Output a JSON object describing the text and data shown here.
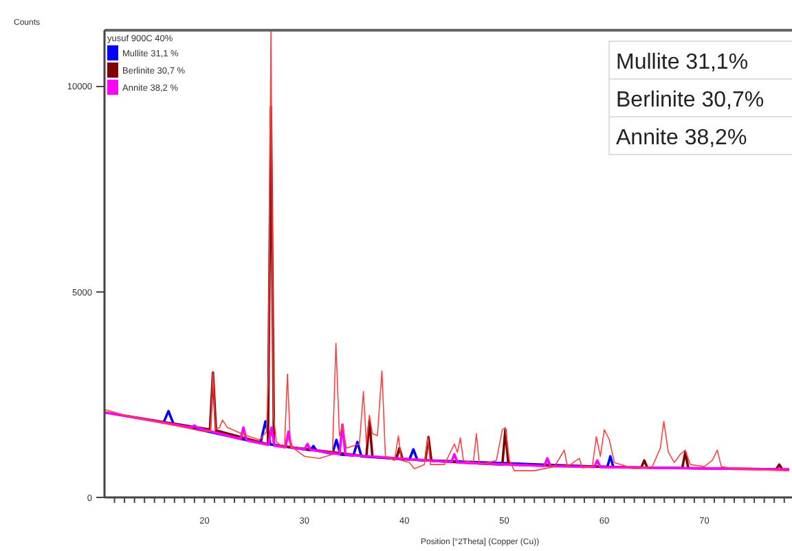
{
  "chart_data": {
    "type": "line",
    "ylabel": "Counts",
    "xlabel": "Position [°2Theta] (Copper (Cu))",
    "legend_title": "yusuf 900C 40%",
    "legend": "top left",
    "grid": false,
    "marker": "none",
    "line_style": "solid",
    "xlim": [
      10,
      78.5
    ],
    "ylim": [
      0,
      11370
    ],
    "xticks": [
      {
        "value": 11,
        "label": null
      },
      {
        "value": 12,
        "label": null
      },
      {
        "value": 13,
        "label": null
      },
      {
        "value": 14,
        "label": null
      },
      {
        "value": 15,
        "label": null
      },
      {
        "value": 16,
        "label": null
      },
      {
        "value": 17,
        "label": null
      },
      {
        "value": 18,
        "label": null
      },
      {
        "value": 19,
        "label": null
      },
      20,
      {
        "value": 21,
        "label": null
      },
      {
        "value": 22,
        "label": null
      },
      {
        "value": 23,
        "label": null
      },
      {
        "value": 24,
        "label": null
      },
      {
        "value": 25,
        "label": null
      },
      {
        "value": 26,
        "label": null
      },
      {
        "value": 27,
        "label": null
      },
      {
        "value": 28,
        "label": null
      },
      {
        "value": 29,
        "label": null
      },
      30,
      {
        "value": 31,
        "label": null
      },
      {
        "value": 32,
        "label": null
      },
      {
        "value": 33,
        "label": null
      },
      {
        "value": 34,
        "label": null
      },
      {
        "value": 35,
        "label": null
      },
      {
        "value": 36,
        "label": null
      },
      {
        "value": 37,
        "label": null
      },
      {
        "value": 38,
        "label": null
      },
      {
        "value": 39,
        "label": null
      },
      40,
      {
        "value": 41,
        "label": null
      },
      {
        "value": 42,
        "label": null
      },
      {
        "value": 43,
        "label": null
      },
      {
        "value": 44,
        "label": null
      },
      {
        "value": 45,
        "label": null
      },
      {
        "value": 46,
        "label": null
      },
      {
        "value": 47,
        "label": null
      },
      {
        "value": 48,
        "label": null
      },
      {
        "value": 49,
        "label": null
      },
      50,
      {
        "value": 51,
        "label": null
      },
      {
        "value": 52,
        "label": null
      },
      {
        "value": 53,
        "label": null
      },
      {
        "value": 54,
        "label": null
      },
      {
        "value": 55,
        "label": null
      },
      {
        "value": 56,
        "label": null
      },
      {
        "value": 57,
        "label": null
      },
      {
        "value": 58,
        "label": null
      },
      {
        "value": 59,
        "label": null
      },
      60,
      {
        "value": 61,
        "label": null
      },
      {
        "value": 62,
        "label": null
      },
      {
        "value": 63,
        "label": null
      },
      {
        "value": 64,
        "label": null
      },
      {
        "value": 65,
        "label": null
      },
      {
        "value": 66,
        "label": null
      },
      {
        "value": 67,
        "label": null
      },
      {
        "value": 68,
        "label": null
      },
      {
        "value": 69,
        "label": null
      },
      70,
      {
        "value": 71,
        "label": null
      },
      {
        "value": 72,
        "label": null
      },
      {
        "value": 73,
        "label": null
      },
      {
        "value": 74,
        "label": null
      },
      {
        "value": 75,
        "label": null
      },
      {
        "value": 76,
        "label": null
      },
      {
        "value": 77,
        "label": null
      },
      {
        "value": 78,
        "label": null
      }
    ],
    "yticks": [
      0,
      5000,
      10000
    ],
    "annotations": [
      "Mullite 31,1%",
      "Berlinite 30,7%",
      "Annite 38,2%"
    ],
    "series": [
      {
        "name": "Mullite 31,1 %",
        "color": "#0000ff",
        "x": [
          15.9,
          16.4,
          16.9,
          25.6,
          26.1,
          26.6,
          30.6,
          30.9,
          31.2,
          32.8,
          33.2,
          33.6,
          34.9,
          35.3,
          35.7,
          40.5,
          40.9,
          41.3,
          60.3,
          60.6,
          60.9
        ],
        "values": [
          1820,
          2100,
          1790,
          1320,
          1850,
          1290,
          1150,
          1250,
          1140,
          1060,
          1400,
          1040,
          1020,
          1350,
          1000,
          920,
          1170,
          910,
          740,
          1000,
          740
        ]
      },
      {
        "name": "Berlinite 30,7 %",
        "color": "#800000",
        "x": [
          10,
          20.55,
          20.85,
          21.15,
          26.35,
          26.65,
          26.95,
          36.2,
          36.5,
          36.8,
          39.2,
          39.5,
          39.8,
          42.1,
          42.4,
          42.7,
          49.8,
          50.1,
          50.4,
          63.7,
          64,
          64.3,
          67.8,
          68.1,
          68.4,
          77.2,
          77.5,
          77.8,
          78.5
        ],
        "values": [
          2070,
          1650,
          3040,
          1630,
          1290,
          9500,
          1270,
          1000,
          1870,
          990,
          950,
          1200,
          940,
          900,
          1470,
          890,
          800,
          1650,
          800,
          725,
          900,
          725,
          715,
          1100,
          712,
          685,
          800,
          682,
          680
        ]
      },
      {
        "name": "Annite 38,2 %",
        "color": "#ff00ff",
        "x": [
          10,
          18.7,
          19,
          19.3,
          23.6,
          23.9,
          24.2,
          26.4,
          26.7,
          27,
          28.1,
          28.4,
          28.7,
          30,
          30.3,
          30.6,
          33.5,
          33.8,
          34.1,
          44.7,
          45,
          45.3,
          54,
          54.3,
          54.6,
          59,
          59.3,
          59.6,
          78.5
        ],
        "values": [
          2070,
          1700,
          1750,
          1690,
          1420,
          1700,
          1390,
          1280,
          1700,
          1260,
          1220,
          1600,
          1210,
          1170,
          1300,
          1160,
          1050,
          1770,
          1040,
          860,
          1050,
          850,
          765,
          950,
          760,
          740,
          900,
          738,
          680
        ]
      },
      {
        "color": "#ff4040",
        "x": [
          10,
          12,
          14,
          16,
          18,
          20,
          20.6,
          20.85,
          21.1,
          21.5,
          21.8,
          22.3,
          24,
          25.5,
          26.2,
          26.4,
          26.65,
          26.9,
          27.2,
          28,
          28.3,
          28.6,
          30,
          31.5,
          32.8,
          33.15,
          33.5,
          33.8,
          34.2,
          35.5,
          35.9,
          36.2,
          36.5,
          36.8,
          37.3,
          37.75,
          38.1,
          39,
          39.4,
          39.7,
          40.5,
          41,
          42,
          42.35,
          42.6,
          44,
          45,
          45.3,
          45.6,
          45.9,
          46.9,
          47.2,
          47.5,
          49.2,
          49.8,
          50.1,
          50.5,
          51,
          53,
          55,
          56,
          56.3,
          57.5,
          57.8,
          58.8,
          59.2,
          59.6,
          60,
          60.5,
          61,
          63,
          64.8,
          65.6,
          65.95,
          66.4,
          67,
          67.6,
          68.1,
          68.6,
          70,
          70.8,
          71.3,
          71.7,
          73,
          75,
          78,
          78.5
        ],
        "values": [
          2140,
          2000,
          1900,
          1800,
          1700,
          1600,
          1620,
          3040,
          1650,
          1700,
          1880,
          1700,
          1520,
          1400,
          1600,
          3000,
          11370,
          2000,
          1350,
          1200,
          3000,
          1250,
          1000,
          950,
          1050,
          3750,
          1500,
          1750,
          1200,
          1300,
          2580,
          1300,
          2000,
          1550,
          1500,
          3080,
          1000,
          900,
          1500,
          900,
          850,
          700,
          800,
          1470,
          800,
          800,
          1300,
          1100,
          1450,
          900,
          850,
          1550,
          800,
          900,
          1650,
          1700,
          900,
          650,
          650,
          750,
          1150,
          750,
          950,
          720,
          750,
          1480,
          1000,
          1650,
          1400,
          850,
          700,
          750,
          1200,
          1850,
          1100,
          850,
          1050,
          1150,
          800,
          750,
          900,
          1150,
          750,
          700,
          680,
          650,
          650
        ]
      }
    ]
  }
}
